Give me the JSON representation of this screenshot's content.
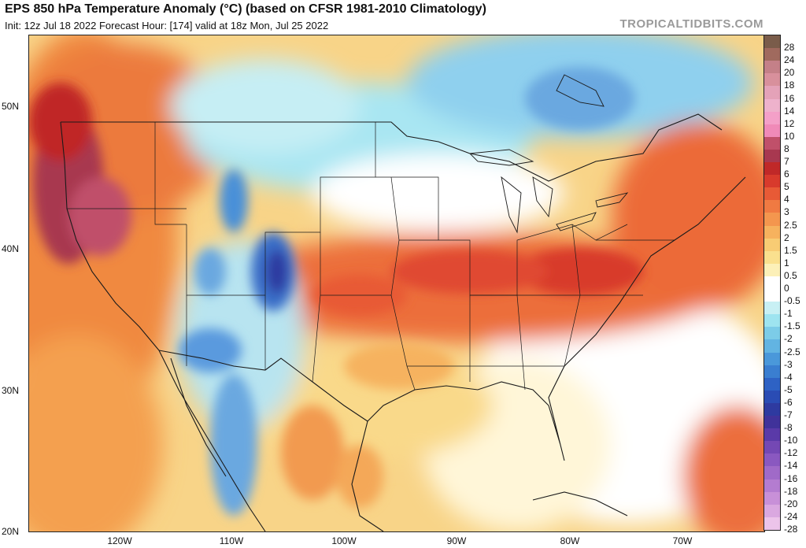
{
  "header": {
    "title": "EPS 850 hPa Temperature Anomaly (°C) (based on CFSR 1981-2010 Climatology)",
    "subtitle": "Init: 12z Jul 18 2022   Forecast Hour: [174]   valid at 18z Mon, Jul 25 2022",
    "brand": "TROPICALTIDBITS.COM"
  },
  "axes": {
    "lat_labels": [
      "50N",
      "40N",
      "30N",
      "20N"
    ],
    "lon_labels": [
      "120W",
      "110W",
      "100W",
      "90W",
      "80W",
      "70W"
    ]
  },
  "colorbar": {
    "labels": [
      "28",
      "24",
      "20",
      "18",
      "16",
      "14",
      "12",
      "10",
      "8",
      "7",
      "6",
      "5",
      "4",
      "3",
      "2.5",
      "2",
      "1.5",
      "1",
      "0.5",
      "0",
      "-0.5",
      "-1",
      "-1.5",
      "-2",
      "-2.5",
      "-3",
      "-4",
      "-5",
      "-6",
      "-7",
      "-8",
      "-10",
      "-12",
      "-14",
      "-16",
      "-18",
      "-20",
      "-24",
      "-28"
    ],
    "colors": [
      "#7a5c4a",
      "#a06a5e",
      "#c48088",
      "#d8909c",
      "#e4a2b8",
      "#eeb2cc",
      "#f4a0c8",
      "#f08ab8",
      "#c0506a",
      "#a83850",
      "#c02828",
      "#d83a2c",
      "#e85a36",
      "#f07a42",
      "#f4964e",
      "#f6b25e",
      "#f8cc74",
      "#fae08e",
      "#fcf0b8",
      "#ffffff",
      "#ffffff",
      "#c8f0f4",
      "#9ee4f0",
      "#7ccce8",
      "#62b4e2",
      "#4a98da",
      "#3a7ed0",
      "#2e62c4",
      "#2a4cb4",
      "#2e3aa0",
      "#40329a",
      "#5a3aa8",
      "#7448b4",
      "#8a58c0",
      "#a06ac8",
      "#b47cd0",
      "#c890d8",
      "#daa8e0",
      "#ecc4ea"
    ]
  }
}
